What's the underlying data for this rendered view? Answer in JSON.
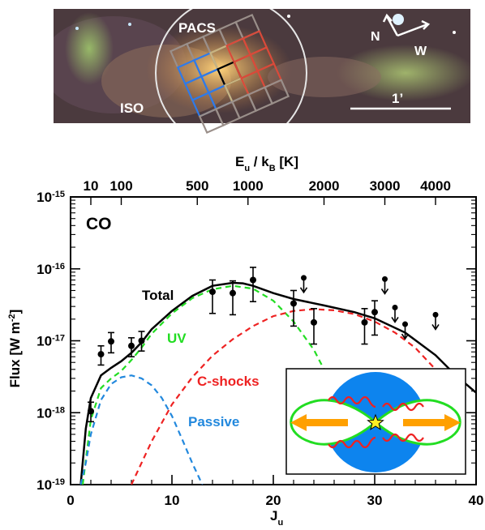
{
  "image_panel": {
    "pacs_label": "PACS",
    "iso_label": "ISO",
    "compass_n": "N",
    "compass_w": "W",
    "scale_label": "1’"
  },
  "chart_data": {
    "type": "scatter",
    "title": "CO",
    "xlabel": "J",
    "xlabel_sub": "u",
    "ylabel": "Flux [W m",
    "ylabel_sup": "-2",
    "ylabel_end": "]",
    "top_axis_label": "E",
    "top_axis_label_sub1": "u",
    "top_axis_label_mid": " / k",
    "top_axis_label_sub2": "B",
    "top_axis_label_end": " [K]",
    "xlim": [
      0,
      40
    ],
    "ylim": [
      1e-19,
      1e-15
    ],
    "yscale": "log",
    "x_ticks": [
      "0",
      "10",
      "20",
      "30",
      "40"
    ],
    "y_tick_labels": [
      {
        "base": "10",
        "exp": "-19",
        "value": 1e-19
      },
      {
        "base": "10",
        "exp": "-18",
        "value": 1e-18
      },
      {
        "base": "10",
        "exp": "-17",
        "value": 1e-17
      },
      {
        "base": "10",
        "exp": "-16",
        "value": 1e-16
      },
      {
        "base": "10",
        "exp": "-15",
        "value": 1e-15
      }
    ],
    "top_ticks": [
      {
        "label": "10",
        "J": 2
      },
      {
        "label": "100",
        "J": 5
      },
      {
        "label": "500",
        "J": 12.5
      },
      {
        "label": "1000",
        "J": 17.5
      },
      {
        "label": "2000",
        "J": 25
      },
      {
        "label": "3000",
        "J": 31
      },
      {
        "label": "4000",
        "J": 36
      }
    ],
    "detections": [
      {
        "J": 2,
        "flux": 1.05e-18,
        "lo": 7.5e-19,
        "hi": 1.4e-18
      },
      {
        "J": 3,
        "flux": 6.5e-18,
        "lo": 4.6e-18,
        "hi": 8.5e-18
      },
      {
        "J": 4,
        "flux": 9.8e-18,
        "lo": 6.8e-18,
        "hi": 1.3e-17
      },
      {
        "J": 6,
        "flux": 8.5e-18,
        "lo": 6e-18,
        "hi": 1.1e-17
      },
      {
        "J": 7,
        "flux": 1e-17,
        "lo": 7.2e-18,
        "hi": 1.35e-17
      },
      {
        "J": 14,
        "flux": 4.8e-17,
        "lo": 2.4e-17,
        "hi": 7e-17
      },
      {
        "J": 16,
        "flux": 4.6e-17,
        "lo": 2.3e-17,
        "hi": 6.8e-17
      },
      {
        "J": 18,
        "flux": 7e-17,
        "lo": 3.5e-17,
        "hi": 1.05e-16
      },
      {
        "J": 22,
        "flux": 3.3e-17,
        "lo": 1.6e-17,
        "hi": 5e-17
      },
      {
        "J": 24,
        "flux": 1.8e-17,
        "lo": 9e-18,
        "hi": 2.8e-17
      },
      {
        "J": 29,
        "flux": 1.8e-17,
        "lo": 9e-18,
        "hi": 2.8e-17
      },
      {
        "J": 30,
        "flux": 2.5e-17,
        "lo": 1.2e-17,
        "hi": 3.6e-17
      }
    ],
    "upper_limits": [
      {
        "J": 23,
        "flux": 7.5e-17
      },
      {
        "J": 31,
        "flux": 7.2e-17
      },
      {
        "J": 32,
        "flux": 2.9e-17
      },
      {
        "J": 33,
        "flux": 1.7e-17
      },
      {
        "J": 36,
        "flux": 2.3e-17
      }
    ],
    "series": [
      {
        "name": "Total",
        "color": "#000000",
        "dash": "solid",
        "points": [
          [
            1,
            1e-19
          ],
          [
            1.5,
            6e-19
          ],
          [
            2,
            1.6e-18
          ],
          [
            3,
            3.3e-18
          ],
          [
            4,
            4.2e-18
          ],
          [
            5,
            5.2e-18
          ],
          [
            6,
            6.8e-18
          ],
          [
            7,
            9.5e-18
          ],
          [
            8,
            1.45e-17
          ],
          [
            10,
            2.6e-17
          ],
          [
            12,
            4.2e-17
          ],
          [
            14,
            5.8e-17
          ],
          [
            16,
            6.4e-17
          ],
          [
            17,
            6.3e-17
          ],
          [
            18,
            5.8e-17
          ],
          [
            20,
            4.6e-17
          ],
          [
            22,
            3.8e-17
          ],
          [
            25,
            3.1e-17
          ],
          [
            28,
            2.5e-17
          ],
          [
            30,
            2.05e-17
          ],
          [
            33,
            1.3e-17
          ],
          [
            36,
            6.3e-18
          ],
          [
            38,
            3.3e-18
          ],
          [
            40,
            1.9e-18
          ]
        ]
      },
      {
        "name": "UV",
        "color": "#22dd22",
        "dash": "dashed",
        "points": [
          [
            1.2,
            1e-19
          ],
          [
            2,
            8e-19
          ],
          [
            3,
            2.2e-18
          ],
          [
            4,
            3e-18
          ],
          [
            5,
            3.8e-18
          ],
          [
            6,
            5.4e-18
          ],
          [
            7,
            8e-18
          ],
          [
            8,
            1.25e-17
          ],
          [
            10,
            2.4e-17
          ],
          [
            12,
            3.9e-17
          ],
          [
            14,
            5.2e-17
          ],
          [
            16,
            5.8e-17
          ],
          [
            18,
            5.3e-17
          ],
          [
            20,
            3.6e-17
          ],
          [
            22,
            1.85e-17
          ],
          [
            24,
            7.5e-18
          ],
          [
            25,
            4e-18
          ]
        ]
      },
      {
        "name": "C-shocks",
        "color": "#ee2222",
        "dash": "dashed",
        "points": [
          [
            6,
            1e-19
          ],
          [
            8,
            4e-19
          ],
          [
            10,
            1.3e-18
          ],
          [
            12,
            3.1e-18
          ],
          [
            14,
            6.2e-18
          ],
          [
            16,
            1.05e-17
          ],
          [
            18,
            1.6e-17
          ],
          [
            20,
            2.2e-17
          ],
          [
            22,
            2.6e-17
          ],
          [
            24,
            2.75e-17
          ],
          [
            26,
            2.65e-17
          ],
          [
            28,
            2.35e-17
          ],
          [
            30,
            1.85e-17
          ],
          [
            32,
            1.3e-17
          ],
          [
            34,
            8e-18
          ],
          [
            36,
            4e-18
          ],
          [
            37,
            2.6e-18
          ]
        ]
      },
      {
        "name": "Passive",
        "color": "#2288dd",
        "dash": "dashed",
        "points": [
          [
            1,
            1e-19
          ],
          [
            1.5,
            2e-19
          ],
          [
            2,
            5e-19
          ],
          [
            3,
            1.5e-18
          ],
          [
            4,
            2.5e-18
          ],
          [
            5,
            3.1e-18
          ],
          [
            6,
            3.3e-18
          ],
          [
            7,
            3e-18
          ],
          [
            8,
            2.4e-18
          ],
          [
            9,
            1.6e-18
          ],
          [
            10,
            9e-19
          ],
          [
            11,
            4.3e-19
          ],
          [
            12,
            2e-19
          ],
          [
            13,
            1e-19
          ]
        ]
      }
    ],
    "curve_labels": [
      {
        "text": "Total",
        "color": "#000000"
      },
      {
        "text": "UV",
        "color": "#22dd22"
      },
      {
        "text": "C-shocks",
        "color": "#ee2222"
      },
      {
        "text": "Passive",
        "color": "#2288dd"
      }
    ],
    "colors": {
      "fill_blue": "#0d84ee",
      "green": "#22dd22",
      "orange": "#ffa000",
      "red": "#ee2222",
      "star": "#ffee22"
    }
  }
}
